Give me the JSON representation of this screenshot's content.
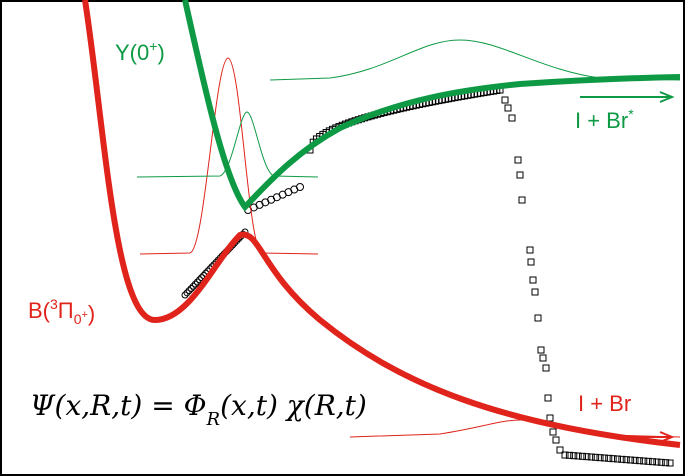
{
  "labels": {
    "y_state": [
      "Y(0",
      "+",
      ")"
    ],
    "b_state": [
      "B(",
      "3",
      "Π",
      "0",
      "+",
      ")"
    ],
    "upper_asymptote": [
      "I + Br",
      "*"
    ],
    "lower_asymptote": "I + Br",
    "equation": [
      "Ψ(x,R,t) = Φ",
      "R",
      "(x,t) χ(R,t)"
    ]
  }
}
